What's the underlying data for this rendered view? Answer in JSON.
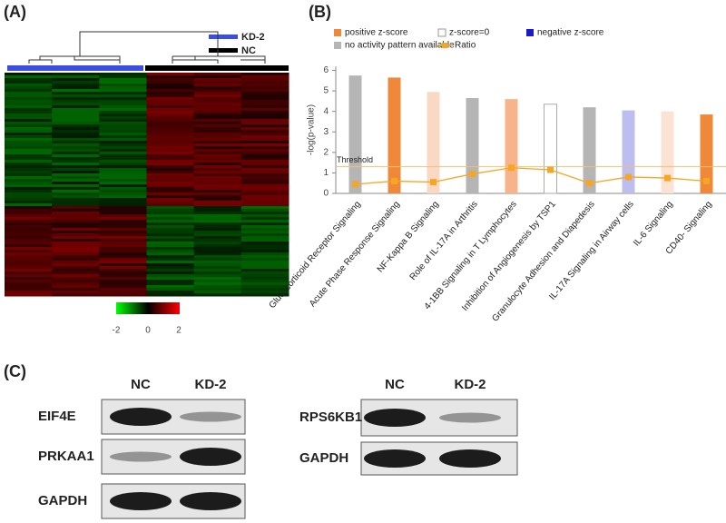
{
  "panels": [
    "(A)",
    "(B)",
    "(C)"
  ],
  "heatmap": {
    "groups": [
      {
        "name": "KD-2",
        "color": "#3a4ee0"
      },
      {
        "name": "NC",
        "color": "#000000"
      }
    ],
    "colorbar_labels": [
      "-2",
      "0",
      "2"
    ]
  },
  "chart_data": {
    "type": "bar",
    "ylabel": "-log(p-value)",
    "categories": [
      "Glucocorticoid Receptor Signaling",
      "Acute Phase Response Signaling",
      "NF-Kappa B Signaling",
      "Role of IL-17A in Arthritis",
      "4-1BB Signaling in T Lymphocytes",
      "Inhibition of Angiogenesis by TSP1",
      "Granulocyte Adhesion and Diapedesis",
      "IL-17A Signaling in Airway cells",
      "IL-6 Signaling",
      "CD40- Signaling"
    ],
    "series": [
      {
        "name": "-log(p-value)",
        "values": [
          5.75,
          5.65,
          4.95,
          4.65,
          4.6,
          4.35,
          4.2,
          4.05,
          4.0,
          3.85
        ],
        "colors": [
          "#b5b5b5",
          "#f0883a",
          "#fad9c4",
          "#b5b5b5",
          "#f7b48a",
          "#ffffff",
          "#b5b5b5",
          "#bdbdf0",
          "#fbe3d3",
          "#f0883a"
        ]
      },
      {
        "name": "Ratio",
        "type": "line",
        "color": "#f5a623",
        "values": [
          0.45,
          0.6,
          0.55,
          0.95,
          1.25,
          1.15,
          0.5,
          0.8,
          0.75,
          0.6
        ]
      }
    ],
    "legend": [
      {
        "name": "positive z-score",
        "color": "#f0883a"
      },
      {
        "name": "z-score=0",
        "color": "#ffffff"
      },
      {
        "name": "negative z-score",
        "color": "#1a1acc"
      },
      {
        "name": "no activity pattern available",
        "color": "#b5b5b5"
      }
    ],
    "threshold": {
      "value": 1.3,
      "label": "Threshold"
    },
    "ylim": [
      0,
      6.2
    ],
    "yticks": [
      0,
      1,
      2,
      3,
      4,
      5,
      6
    ]
  },
  "blots": [
    {
      "lanes": [
        "NC",
        "KD-2"
      ],
      "rows": [
        "EIF4E",
        "PRKAA1",
        "GAPDH"
      ]
    },
    {
      "lanes": [
        "NC",
        "KD-2"
      ],
      "rows": [
        "RPS6KB1",
        "GAPDH"
      ]
    }
  ]
}
